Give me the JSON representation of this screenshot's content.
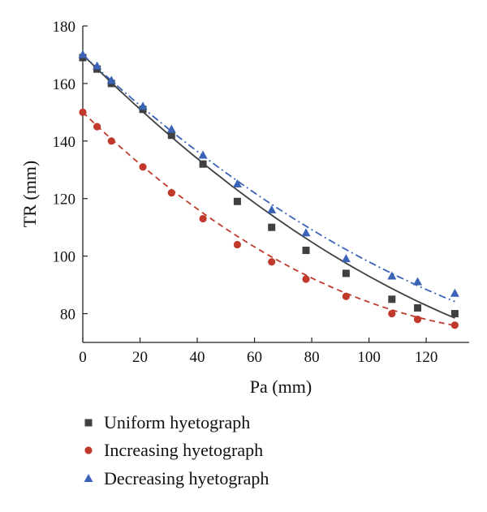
{
  "chart_data": {
    "type": "scatter",
    "title": "",
    "xlabel": "Pa (mm)",
    "ylabel": "TR (mm)",
    "xlim": [
      0,
      135
    ],
    "ylim": [
      70,
      180
    ],
    "xticks": [
      "0",
      "20",
      "40",
      "60",
      "80",
      "100",
      "120"
    ],
    "yticks": [
      "80",
      "100",
      "120",
      "140",
      "160",
      "180"
    ],
    "grid": false,
    "legend_position": "bottom",
    "series": [
      {
        "name": "Uniform hyetograph",
        "marker": "square",
        "color": "#404040",
        "line_style": "solid",
        "x": [
          0,
          5,
          10,
          21,
          31,
          42,
          54,
          66,
          78,
          92,
          108,
          117,
          130
        ],
        "y": [
          169,
          165,
          160,
          151,
          142,
          132,
          119,
          110,
          102,
          94,
          85,
          82,
          80
        ],
        "fit": [
          170,
          -0.99,
          0.0022
        ]
      },
      {
        "name": "Increasing hyetograph",
        "marker": "circle",
        "color": "#c0392b",
        "line_style": "dashed",
        "x": [
          0,
          5,
          10,
          21,
          31,
          42,
          54,
          66,
          78,
          92,
          108,
          117,
          130
        ],
        "y": [
          150,
          145,
          140,
          131,
          122,
          113,
          104,
          98,
          92,
          86,
          80,
          78,
          76
        ],
        "fit": [
          150,
          -0.96,
          0.003
        ]
      },
      {
        "name": "Decreasing hyetograph",
        "marker": "triangle",
        "color": "#3a63b8",
        "line_style": "dashdot",
        "x": [
          0,
          5,
          10,
          21,
          31,
          42,
          54,
          66,
          78,
          92,
          108,
          117,
          130
        ],
        "y": [
          170,
          166,
          161,
          152,
          144,
          135,
          125,
          116,
          108,
          99,
          93,
          91,
          87
        ],
        "fit": [
          170,
          -0.92,
          0.002
        ]
      }
    ]
  }
}
